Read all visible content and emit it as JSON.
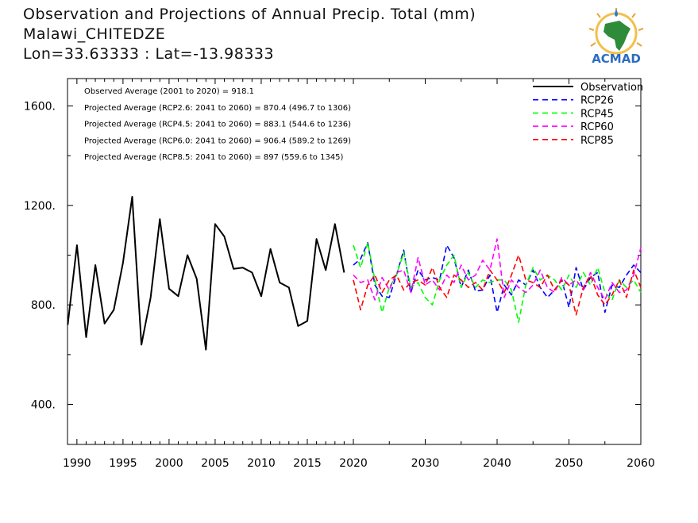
{
  "header": {
    "title": "Observation and Projections of Annual Precip. Total (mm)",
    "station": "Malawi_CHITEDZE",
    "coords": "Lon=33.63333 : Lat=-13.98333"
  },
  "logo": {
    "text": "ACMAD",
    "icon": "acmad-africa-logo"
  },
  "chart_data": {
    "type": "line",
    "xlim": [
      1989,
      2060
    ],
    "ylim": [
      230,
      1690
    ],
    "xticks": [
      1990,
      1995,
      2000,
      2005,
      2010,
      2015,
      2020,
      2030,
      2040,
      2050,
      2060
    ],
    "yticks": [
      400,
      800,
      1200,
      1600
    ],
    "ytick_labels": [
      "400.",
      "800.",
      "1200.",
      "1600."
    ],
    "annotations": [
      "Observed Average (2001 to 2020) = 918.1",
      "Projected Average (RCP2.6: 2041 to 2060) = 870.4 (496.7 to 1306)",
      "Projected Average (RCP4.5: 2041 to 2060) = 883.1 (544.6 to 1236)",
      "Projected Average (RCP6.0: 2041 to 2060) = 906.4 (589.2 to 1269)",
      "Projected Average (RCP8.5: 2041 to 2060) = 897 (559.6 to 1345)"
    ],
    "legend_position": "top-right",
    "series": [
      {
        "name": "Observation",
        "color": "#000000",
        "style": "solid",
        "x": [
          1989,
          1990,
          1991,
          1992,
          1993,
          1994,
          1995,
          1996,
          1997,
          1998,
          1999,
          2000,
          2001,
          2002,
          2003,
          2004,
          2005,
          2006,
          2007,
          2008,
          2009,
          2010,
          2011,
          2012,
          2013,
          2014,
          2015,
          2016,
          2017,
          2018,
          2019
        ],
        "y": [
          720,
          1040,
          670,
          960,
          725,
          780,
          970,
          1235,
          640,
          830,
          1145,
          865,
          835,
          1000,
          905,
          620,
          1125,
          1075,
          945,
          950,
          930,
          835,
          1025,
          890,
          870,
          715,
          735,
          1065,
          940,
          1125,
          930
        ]
      },
      {
        "name": "RCP26",
        "color": "#0000ff",
        "style": "dashed",
        "x": [
          2020,
          2021,
          2022,
          2023,
          2024,
          2025,
          2026,
          2027,
          2028,
          2029,
          2030,
          2031,
          2032,
          2033,
          2034,
          2035,
          2036,
          2037,
          2038,
          2039,
          2040,
          2041,
          2042,
          2043,
          2044,
          2045,
          2046,
          2047,
          2048,
          2049,
          2050,
          2051,
          2052,
          2053,
          2054,
          2055,
          2056,
          2057,
          2058,
          2059,
          2060
        ],
        "y": [
          960,
          985,
          1050,
          880,
          835,
          830,
          920,
          1020,
          850,
          940,
          900,
          910,
          900,
          1040,
          990,
          870,
          940,
          855,
          860,
          920,
          770,
          880,
          840,
          900,
          880,
          940,
          870,
          830,
          860,
          900,
          790,
          950,
          860,
          910,
          930,
          770,
          880,
          870,
          920,
          960,
          930
        ]
      },
      {
        "name": "RCP45",
        "color": "#00ff00",
        "style": "dashed",
        "x": [
          2020,
          2021,
          2022,
          2023,
          2024,
          2025,
          2026,
          2027,
          2028,
          2029,
          2030,
          2031,
          2032,
          2033,
          2034,
          2035,
          2036,
          2037,
          2038,
          2039,
          2040,
          2041,
          2042,
          2043,
          2044,
          2045,
          2046,
          2047,
          2048,
          2049,
          2050,
          2051,
          2052,
          2053,
          2054,
          2055,
          2056,
          2057,
          2058,
          2059,
          2060
        ],
        "y": [
          1040,
          950,
          1050,
          900,
          770,
          870,
          920,
          1010,
          870,
          890,
          830,
          800,
          900,
          960,
          1000,
          870,
          930,
          870,
          900,
          890,
          900,
          900,
          860,
          730,
          880,
          950,
          900,
          920,
          900,
          860,
          920,
          870,
          930,
          880,
          950,
          850,
          820,
          900,
          870,
          900,
          850
        ]
      },
      {
        "name": "RCP60",
        "color": "#ff00ff",
        "style": "dashed",
        "x": [
          2020,
          2021,
          2022,
          2023,
          2024,
          2025,
          2026,
          2027,
          2028,
          2029,
          2030,
          2031,
          2032,
          2033,
          2034,
          2035,
          2036,
          2037,
          2038,
          2039,
          2040,
          2041,
          2042,
          2043,
          2044,
          2045,
          2046,
          2047,
          2048,
          2049,
          2050,
          2051,
          2052,
          2053,
          2054,
          2055,
          2056,
          2057,
          2058,
          2059,
          2060
        ],
        "y": [
          920,
          890,
          900,
          820,
          910,
          860,
          930,
          940,
          850,
          990,
          880,
          900,
          860,
          920,
          890,
          960,
          900,
          920,
          980,
          940,
          1065,
          830,
          900,
          870,
          850,
          880,
          940,
          870,
          850,
          910,
          880,
          900,
          860,
          930,
          870,
          820,
          890,
          850,
          860,
          920,
          1030
        ]
      },
      {
        "name": "RCP85",
        "color": "#ff0000",
        "style": "dashed",
        "x": [
          2020,
          2021,
          2022,
          2023,
          2024,
          2025,
          2026,
          2027,
          2028,
          2029,
          2030,
          2031,
          2032,
          2033,
          2034,
          2035,
          2036,
          2037,
          2038,
          2039,
          2040,
          2041,
          2042,
          2043,
          2044,
          2045,
          2046,
          2047,
          2048,
          2049,
          2050,
          2051,
          2052,
          2053,
          2054,
          2055,
          2056,
          2057,
          2058,
          2059,
          2060
        ],
        "y": [
          900,
          780,
          880,
          920,
          850,
          900,
          920,
          860,
          890,
          900,
          880,
          950,
          870,
          830,
          920,
          900,
          870,
          890,
          860,
          940,
          900,
          850,
          920,
          1000,
          900,
          890,
          870,
          920,
          860,
          900,
          880,
          760,
          870,
          920,
          840,
          800,
          840,
          900,
          830,
          940,
          870
        ]
      }
    ]
  }
}
